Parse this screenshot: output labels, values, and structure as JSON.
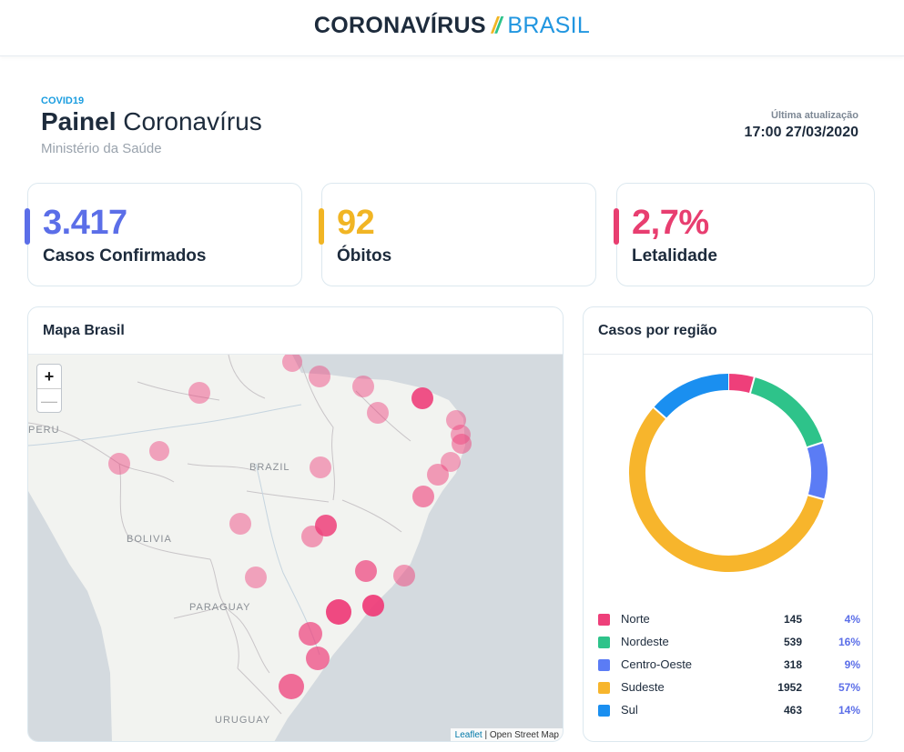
{
  "header": {
    "brand_left": "CORONAVÍRUS",
    "brand_sep": "//",
    "brand_right": "BRASIL"
  },
  "panel": {
    "tag": "COVID19",
    "title_bold": "Painel",
    "title_rest": "Coronavírus",
    "ministry": "Ministério da Saúde",
    "update_label": "Última atualização",
    "update_value": "17:00 27/03/2020"
  },
  "kpis": [
    {
      "value": "3.417",
      "label": "Casos Confirmados",
      "color": "#5b6ee8"
    },
    {
      "value": "92",
      "label": "Óbitos",
      "color": "#f1b524"
    },
    {
      "value": "2,7%",
      "label": "Letalidade",
      "color": "#e83e70"
    }
  ],
  "map": {
    "title": "Mapa Brasil",
    "zoom_in": "+",
    "zoom_out": "—",
    "labels": {
      "peru": "PERU",
      "brazil": "BRAZIL",
      "bolivia": "BOLIVIA",
      "paraguay": "PARAGUAY",
      "uruguay": "URUGUAY"
    },
    "attribution_leaflet": "Leaflet",
    "attribution_rest": " | Open Street Map",
    "marker_color": "#ee3f7a"
  },
  "regions": {
    "title": "Casos por região",
    "chart_data": {
      "type": "pie",
      "variant": "donut",
      "categories": [
        "Norte",
        "Nordeste",
        "Centro-Oeste",
        "Sudeste",
        "Sul"
      ],
      "values": [
        145,
        539,
        318,
        1952,
        463
      ],
      "percents": [
        "4%",
        "16%",
        "9%",
        "57%",
        "14%"
      ],
      "colors": [
        "#ee3f7a",
        "#2ec38a",
        "#5b7cf5",
        "#f7b52c",
        "#1a8ff0"
      ],
      "legend_position": "bottom"
    }
  }
}
